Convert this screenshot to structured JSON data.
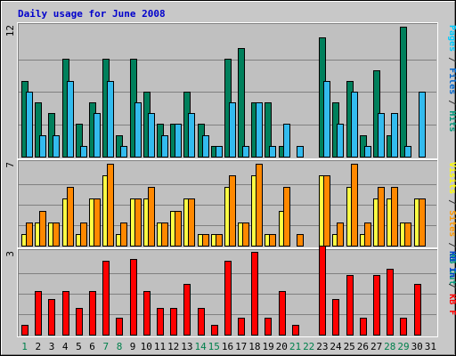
{
  "chart_data": {
    "type": "bar",
    "title": "Daily usage for June 2008",
    "days": [
      "1",
      "2",
      "3",
      "4",
      "5",
      "6",
      "7",
      "8",
      "9",
      "10",
      "11",
      "12",
      "13",
      "14",
      "15",
      "16",
      "17",
      "18",
      "19",
      "20",
      "21",
      "22",
      "23",
      "24",
      "25",
      "26",
      "27",
      "28",
      "29",
      "30",
      "31"
    ],
    "weekend_days": [
      "1",
      "7",
      "8",
      "14",
      "15",
      "21",
      "22",
      "28",
      "29"
    ],
    "grid": true,
    "panels": [
      {
        "max_label": "12",
        "ymax": 12,
        "axis_label_parts": [
          {
            "text": "Pages",
            "color": "#00ccff"
          },
          {
            "text": " / ",
            "color": "#333333"
          },
          {
            "text": "Files",
            "color": "#0066cc"
          },
          {
            "text": " / ",
            "color": "#333333"
          },
          {
            "text": "Hits",
            "color": "#00997a"
          }
        ],
        "series": [
          {
            "name": "Hits",
            "color": "#00805c",
            "values": [
              7,
              5,
              4,
              9,
              3,
              5,
              9,
              2,
              9,
              6,
              3,
              3,
              6,
              3,
              1,
              9,
              10,
              5,
              5,
              1,
              0,
              0,
              11,
              5,
              7,
              2,
              8,
              2,
              12,
              0,
              0
            ]
          },
          {
            "name": "Pages",
            "color": "#33bbee",
            "values": [
              6,
              2,
              2,
              7,
              1,
              4,
              7,
              1,
              5,
              4,
              2,
              3,
              4,
              2,
              1,
              5,
              1,
              5,
              1,
              3,
              1,
              0,
              7,
              3,
              6,
              1,
              4,
              4,
              1,
              6,
              0
            ]
          }
        ]
      },
      {
        "max_label": "7",
        "ymax": 7,
        "axis_label_parts": [
          {
            "text": "Visits",
            "color": "#ffff00"
          },
          {
            "text": " / ",
            "color": "#333333"
          },
          {
            "text": "Sites",
            "color": "#ff9900"
          },
          {
            "text": " / ",
            "color": "#333333"
          },
          {
            "text": "KB Out",
            "color": "#00997a"
          }
        ],
        "series": [
          {
            "name": "Visits",
            "color": "#ffff44",
            "values": [
              1,
              2,
              2,
              4,
              1,
              4,
              6,
              1,
              4,
              4,
              2,
              3,
              4,
              1,
              1,
              5,
              2,
              6,
              1,
              3,
              0,
              0,
              6,
              1,
              5,
              1,
              4,
              4,
              2,
              4,
              0
            ]
          },
          {
            "name": "Sites",
            "color": "#ff8800",
            "values": [
              2,
              3,
              2,
              5,
              2,
              4,
              7,
              2,
              4,
              5,
              2,
              3,
              4,
              1,
              1,
              6,
              2,
              7,
              1,
              5,
              1,
              0,
              6,
              2,
              7,
              2,
              5,
              5,
              2,
              4,
              0
            ]
          }
        ]
      },
      {
        "max_label": "3",
        "ymax": 3,
        "axis_label_parts": [
          {
            "text": "KB In",
            "color": "#0044cc"
          },
          {
            "text": " / ",
            "color": "#333333"
          },
          {
            "text": "KB F",
            "color": "#ff0000"
          }
        ],
        "series": [
          {
            "name": "KB F",
            "color": "#ff0000",
            "values": [
              0.36,
              1.6,
              1.32,
              1.6,
              0.98,
              1.6,
              2.72,
              0.62,
              2.78,
              1.6,
              0.98,
              0.98,
              1.85,
              0.98,
              0.36,
              2.72,
              0.62,
              3.02,
              0.62,
              1.6,
              0.36,
              0,
              3.25,
              1.3,
              2.2,
              0.62,
              2.2,
              2.4,
              0.62,
              1.85,
              0
            ]
          }
        ]
      }
    ]
  }
}
